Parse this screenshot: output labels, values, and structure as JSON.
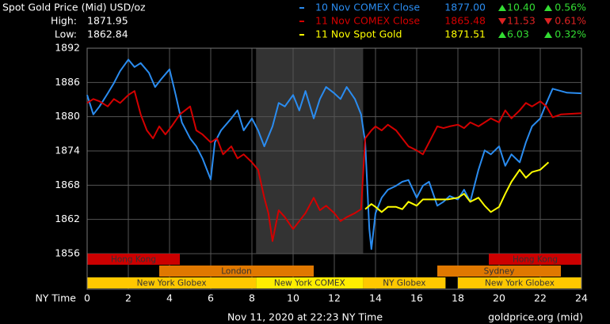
{
  "chart_data": {
    "type": "line",
    "title": "Spot Gold Price (Mid) USD/oz",
    "stats": [
      {
        "label": "High:",
        "value": "1871.95"
      },
      {
        "label": "Low:",
        "value": "1862.84"
      }
    ],
    "x_label": "NY Time",
    "footer": "Nov 11, 2020 at 22:23 NY Time",
    "source": "goldprice.org (mid)",
    "xlim": [
      0,
      24
    ],
    "xticks": [
      0,
      2,
      4,
      6,
      8,
      10,
      12,
      14,
      16,
      18,
      20,
      22,
      24
    ],
    "ylim": [
      1856,
      1892
    ],
    "yticks": [
      1856,
      1862,
      1868,
      1874,
      1880,
      1886,
      1892
    ],
    "grid": true,
    "series": [
      {
        "name": "10 Nov COMEX Close",
        "color": "#2a8cf0",
        "close": "1877.00",
        "change": "10.40",
        "change_pct": "0.56%",
        "direction": "up",
        "x": [
          0,
          0.3,
          0.6,
          1,
          1.3,
          1.6,
          2,
          2.3,
          2.6,
          3,
          3.3,
          3.6,
          4,
          4.3,
          4.6,
          5,
          5.3,
          5.6,
          6,
          6.2,
          6.5,
          7,
          7.3,
          7.6,
          8,
          8.3,
          8.6,
          9,
          9.3,
          9.6,
          10,
          10.3,
          10.6,
          11,
          11.3,
          11.6,
          12,
          12.3,
          12.6,
          13,
          13.3,
          13.5,
          13.7,
          13.8,
          14,
          14.3,
          14.6,
          15,
          15.3,
          15.6,
          16,
          16.3,
          16.6,
          17,
          17.3,
          17.6,
          18,
          18.3,
          18.6,
          19,
          19.3,
          19.6,
          20,
          20.3,
          20.6,
          21,
          21.3,
          21.6,
          22,
          22.3,
          22.6,
          23,
          23.3,
          24
        ],
        "values": [
          1883.8,
          1880.4,
          1881.8,
          1884.1,
          1885.9,
          1888,
          1890,
          1888.7,
          1889.4,
          1887.7,
          1885.2,
          1886.6,
          1888.3,
          1883.8,
          1879,
          1876.2,
          1874.8,
          1872.7,
          1869,
          1875.5,
          1877.6,
          1879.7,
          1881.1,
          1877.6,
          1879.7,
          1877.6,
          1874.8,
          1878.3,
          1882.4,
          1881.8,
          1883.8,
          1881.1,
          1884.5,
          1879.7,
          1883.1,
          1885.2,
          1884.1,
          1883.1,
          1885.2,
          1883.1,
          1880.4,
          1875.5,
          1860.3,
          1856.8,
          1863.1,
          1865.8,
          1867.2,
          1867.9,
          1868.6,
          1868.9,
          1865.8,
          1867.9,
          1868.6,
          1864.4,
          1865.1,
          1866.1,
          1865.5,
          1867.2,
          1865.1,
          1870.7,
          1874.1,
          1873.4,
          1874.8,
          1871.4,
          1873.4,
          1872,
          1875.5,
          1878.3,
          1879.7,
          1882.4,
          1884.9,
          1884.5,
          1884.2,
          1884.1
        ]
      },
      {
        "name": "11 Nov COMEX Close",
        "color": "#d40000",
        "close": "1865.48",
        "change": "11.53",
        "change_pct": "0.61%",
        "direction": "down",
        "x": [
          0,
          0.3,
          0.6,
          1,
          1.3,
          1.6,
          2,
          2.3,
          2.6,
          2.9,
          3.2,
          3.5,
          3.8,
          4.1,
          4.5,
          5,
          5.3,
          5.6,
          6,
          6.3,
          6.6,
          7,
          7.3,
          7.6,
          8,
          8.3,
          8.6,
          8.8,
          9,
          9.3,
          9.6,
          10,
          10.3,
          10.6,
          11,
          11.3,
          11.6,
          12,
          12.3,
          12.6,
          13,
          13.3,
          13.5,
          13.8,
          14,
          14.3,
          14.6,
          15,
          15.3,
          15.6,
          16,
          16.3,
          16.6,
          17,
          17.3,
          17.6,
          18,
          18.3,
          18.6,
          19,
          19.3,
          19.6,
          20,
          20.3,
          20.6,
          21,
          21.3,
          21.6,
          22,
          22.3,
          22.6,
          23,
          24
        ],
        "values": [
          1882.4,
          1883.1,
          1882.7,
          1881.8,
          1883.1,
          1882.4,
          1883.8,
          1884.5,
          1880.4,
          1877.6,
          1876.2,
          1878.3,
          1876.9,
          1878.3,
          1880.4,
          1881.8,
          1877.6,
          1876.9,
          1875.5,
          1876.2,
          1873.4,
          1874.8,
          1872.7,
          1873.4,
          1872,
          1870.7,
          1865.8,
          1863.1,
          1858.2,
          1863.6,
          1862.4,
          1860.3,
          1861.7,
          1863.1,
          1865.8,
          1863.6,
          1864.4,
          1863.1,
          1861.7,
          1862.4,
          1863.1,
          1863.8,
          1876.2,
          1877.6,
          1878.3,
          1877.6,
          1878.6,
          1877.6,
          1876.2,
          1874.8,
          1874.1,
          1873.4,
          1875.5,
          1878.3,
          1878,
          1878.3,
          1878.6,
          1878,
          1879,
          1878.3,
          1879,
          1879.7,
          1879,
          1881.1,
          1879.7,
          1881.1,
          1882.4,
          1881.8,
          1882.7,
          1881.8,
          1879.9,
          1880.4,
          1880.6
        ]
      },
      {
        "name": "11 Nov Spot Gold",
        "color": "#ffff00",
        "close": "1871.51",
        "change": "6.03",
        "change_pct": "0.32%",
        "direction": "up",
        "x": [
          13.5,
          13.8,
          14,
          14.3,
          14.6,
          15,
          15.3,
          15.6,
          16,
          16.3,
          16.6,
          17,
          17.5,
          18,
          18.3,
          18.6,
          19,
          19.3,
          19.6,
          20,
          20.3,
          20.6,
          21,
          21.3,
          21.6,
          22,
          22.4
        ],
        "values": [
          1863.8,
          1864.7,
          1864.2,
          1863.3,
          1864.2,
          1864.2,
          1863.8,
          1865.1,
          1864.4,
          1865.5,
          1865.5,
          1865.5,
          1865.5,
          1865.8,
          1866.5,
          1865.1,
          1865.8,
          1864.4,
          1863.3,
          1864.2,
          1866.5,
          1868.6,
          1870.7,
          1869.3,
          1870.3,
          1870.7,
          1872
        ]
      }
    ],
    "sessions": [
      [
        {
          "name": "Hong Kong",
          "color": "#cc0000",
          "start": 0,
          "end": 4.5
        },
        {
          "name": "Hong Kong",
          "color": "#cc0000",
          "start": 19.5,
          "end": 24
        }
      ],
      [
        {
          "name": "London",
          "color": "#e07800",
          "start": 3.5,
          "end": 11
        },
        {
          "name": "Sydney",
          "color": "#e07800",
          "start": 17,
          "end": 23
        }
      ],
      [
        {
          "name": "New York Globex",
          "color": "#ffc800",
          "start": 0,
          "end": 8.2
        },
        {
          "name": "New York COMEX",
          "color": "#ffee00",
          "start": 8.2,
          "end": 13.4,
          "shaded": true
        },
        {
          "name": "NY Globex",
          "color": "#ffc800",
          "start": 13.4,
          "end": 17.4
        },
        {
          "name": "New York Globex",
          "color": "#ffc800",
          "start": 18,
          "end": 24
        }
      ]
    ]
  }
}
